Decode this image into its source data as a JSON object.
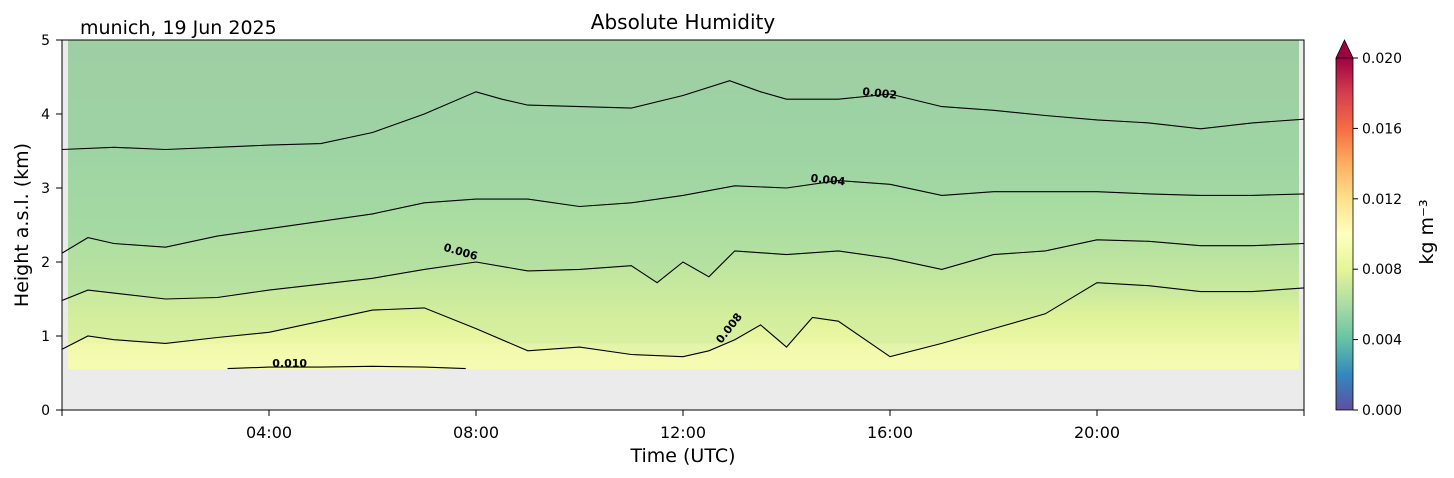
{
  "chart_data": {
    "type": "heatmap",
    "title": "Absolute Humidity",
    "subtitle": "munich, 19 Jun 2025",
    "xlabel": "Time (UTC)",
    "ylabel": "Height a.s.l. (km)",
    "xlim": [
      0,
      24
    ],
    "ylim": [
      0,
      5
    ],
    "x_ticks": [
      4,
      8,
      12,
      16,
      20
    ],
    "x_tick_labels": [
      "04:00",
      "08:00",
      "12:00",
      "16:00",
      "20:00"
    ],
    "y_ticks": [
      0,
      1,
      2,
      3,
      4,
      5
    ],
    "y_tick_labels": [
      "0",
      "1",
      "2",
      "3",
      "4",
      "5"
    ],
    "grid": false,
    "no_data_below_km": 0.55,
    "no_data_color": "#ebebeb",
    "colorbar": {
      "label": "kg m⁻³",
      "min": 0.0,
      "max": 0.02,
      "extend": "max",
      "ticks": [
        0.0,
        0.004,
        0.008,
        0.012,
        0.016,
        0.02
      ],
      "tick_labels": [
        "0.000",
        "0.004",
        "0.008",
        "0.012",
        "0.016",
        "0.020"
      ],
      "colors": [
        "#5e4fa2",
        "#3288bd",
        "#66c2a5",
        "#abdda4",
        "#e6f598",
        "#ffffbf",
        "#fee08b",
        "#fdae61",
        "#f46d43",
        "#d53e4f",
        "#9e0142"
      ]
    },
    "contours": [
      {
        "level": 0.002,
        "label": "0.002",
        "label_at": [
          15.8,
          4.27
        ],
        "points": [
          [
            0,
            3.52
          ],
          [
            1,
            3.55
          ],
          [
            2,
            3.52
          ],
          [
            3,
            3.55
          ],
          [
            4,
            3.58
          ],
          [
            5,
            3.6
          ],
          [
            6,
            3.75
          ],
          [
            7,
            4.0
          ],
          [
            8,
            4.3
          ],
          [
            8.5,
            4.2
          ],
          [
            9,
            4.12
          ],
          [
            10,
            4.1
          ],
          [
            11,
            4.08
          ],
          [
            12,
            4.25
          ],
          [
            12.9,
            4.45
          ],
          [
            13.5,
            4.3
          ],
          [
            14,
            4.2
          ],
          [
            15,
            4.2
          ],
          [
            16,
            4.27
          ],
          [
            17,
            4.1
          ],
          [
            18,
            4.05
          ],
          [
            19,
            3.98
          ],
          [
            20,
            3.92
          ],
          [
            21,
            3.88
          ],
          [
            22,
            3.8
          ],
          [
            23,
            3.88
          ],
          [
            24,
            3.93
          ]
        ]
      },
      {
        "level": 0.004,
        "label": "0.004",
        "label_at": [
          14.8,
          3.1
        ],
        "points": [
          [
            0,
            2.12
          ],
          [
            0.5,
            2.33
          ],
          [
            1,
            2.25
          ],
          [
            2,
            2.2
          ],
          [
            3,
            2.35
          ],
          [
            4,
            2.45
          ],
          [
            5,
            2.55
          ],
          [
            6,
            2.65
          ],
          [
            7,
            2.8
          ],
          [
            8,
            2.85
          ],
          [
            9,
            2.85
          ],
          [
            10,
            2.75
          ],
          [
            11,
            2.8
          ],
          [
            12,
            2.9
          ],
          [
            13,
            3.03
          ],
          [
            14,
            3.0
          ],
          [
            15,
            3.1
          ],
          [
            16,
            3.05
          ],
          [
            17,
            2.9
          ],
          [
            18,
            2.95
          ],
          [
            19,
            2.95
          ],
          [
            20,
            2.95
          ],
          [
            21,
            2.92
          ],
          [
            22,
            2.9
          ],
          [
            23,
            2.9
          ],
          [
            24,
            2.92
          ]
        ]
      },
      {
        "level": 0.006,
        "label": "0.006",
        "label_at": [
          7.7,
          2.13
        ],
        "points": [
          [
            0,
            1.48
          ],
          [
            0.5,
            1.62
          ],
          [
            1,
            1.58
          ],
          [
            2,
            1.5
          ],
          [
            3,
            1.52
          ],
          [
            4,
            1.62
          ],
          [
            5,
            1.7
          ],
          [
            6,
            1.78
          ],
          [
            7,
            1.9
          ],
          [
            8,
            2.0
          ],
          [
            9,
            1.88
          ],
          [
            10,
            1.9
          ],
          [
            11,
            1.95
          ],
          [
            11.5,
            1.72
          ],
          [
            12,
            2.0
          ],
          [
            12.5,
            1.8
          ],
          [
            13,
            2.15
          ],
          [
            14,
            2.1
          ],
          [
            15,
            2.15
          ],
          [
            16,
            2.05
          ],
          [
            17,
            1.9
          ],
          [
            18,
            2.1
          ],
          [
            19,
            2.15
          ],
          [
            20,
            2.3
          ],
          [
            21,
            2.28
          ],
          [
            22,
            2.22
          ],
          [
            23,
            2.22
          ],
          [
            24,
            2.25
          ]
        ]
      },
      {
        "level": 0.008,
        "label": "0.008",
        "label_at": [
          12.9,
          1.1
        ],
        "points": [
          [
            0,
            0.82
          ],
          [
            0.5,
            1.0
          ],
          [
            1,
            0.95
          ],
          [
            2,
            0.9
          ],
          [
            3,
            0.98
          ],
          [
            4,
            1.05
          ],
          [
            5,
            1.2
          ],
          [
            6,
            1.35
          ],
          [
            7,
            1.38
          ],
          [
            8,
            1.1
          ],
          [
            9,
            0.8
          ],
          [
            10,
            0.85
          ],
          [
            11,
            0.75
          ],
          [
            12,
            0.72
          ],
          [
            12.5,
            0.8
          ],
          [
            13,
            0.95
          ],
          [
            13.5,
            1.15
          ],
          [
            14,
            0.85
          ],
          [
            14.5,
            1.25
          ],
          [
            15,
            1.2
          ],
          [
            16,
            0.72
          ],
          [
            17,
            0.9
          ],
          [
            18,
            1.1
          ],
          [
            19,
            1.3
          ],
          [
            20,
            1.72
          ],
          [
            21,
            1.68
          ],
          [
            22,
            1.6
          ],
          [
            23,
            1.6
          ],
          [
            24,
            1.65
          ]
        ]
      },
      {
        "level": 0.01,
        "label": "0.010",
        "label_at": [
          4.4,
          0.62
        ],
        "points": [
          [
            3.2,
            0.56
          ],
          [
            4,
            0.58
          ],
          [
            5,
            0.58
          ],
          [
            6,
            0.59
          ],
          [
            7,
            0.58
          ],
          [
            7.8,
            0.56
          ]
        ]
      }
    ]
  }
}
